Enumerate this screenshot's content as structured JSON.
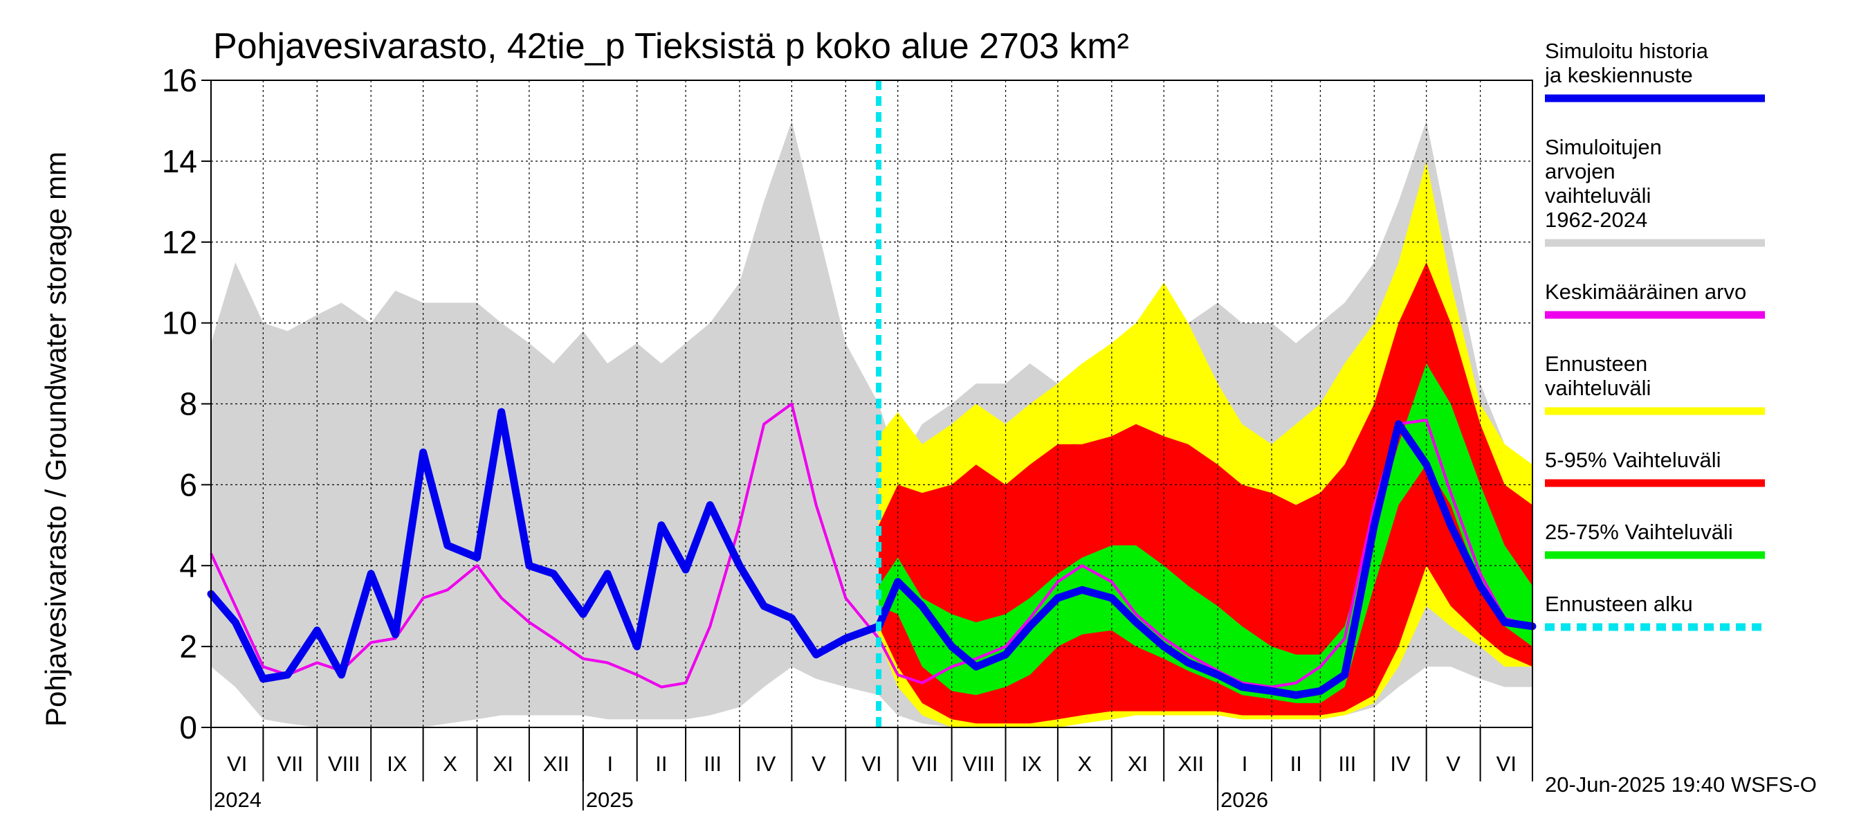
{
  "chart_data": {
    "type": "area",
    "title": "Pohjavesivarasto, 42tie_p Tieksistä p koko alue 2703 km²",
    "ylabel": "Pohjavesivarasto / Groundwater storage   mm",
    "ylim": [
      0,
      16
    ],
    "yticks": [
      0,
      2,
      4,
      6,
      8,
      10,
      12,
      14,
      16
    ],
    "grid": true,
    "legend_position": "right",
    "footer": "20-Jun-2025 19:40 WSFS-O",
    "x_range": [
      "2024-06-01",
      "2026-07-01"
    ],
    "forecast_start": "2025-06-20",
    "months": [
      {
        "label": "VI",
        "start": "2024-06-01"
      },
      {
        "label": "VII",
        "start": "2024-07-01"
      },
      {
        "label": "VIII",
        "start": "2024-08-01"
      },
      {
        "label": "IX",
        "start": "2024-09-01"
      },
      {
        "label": "X",
        "start": "2024-10-01"
      },
      {
        "label": "XI",
        "start": "2024-11-01"
      },
      {
        "label": "XII",
        "start": "2024-12-01"
      },
      {
        "label": "I",
        "start": "2025-01-01"
      },
      {
        "label": "II",
        "start": "2025-02-01"
      },
      {
        "label": "III",
        "start": "2025-03-01"
      },
      {
        "label": "IV",
        "start": "2025-04-01"
      },
      {
        "label": "V",
        "start": "2025-05-01"
      },
      {
        "label": "VI",
        "start": "2025-06-01"
      },
      {
        "label": "VII",
        "start": "2025-07-01"
      },
      {
        "label": "VIII",
        "start": "2025-08-01"
      },
      {
        "label": "IX",
        "start": "2025-09-01"
      },
      {
        "label": "X",
        "start": "2025-10-01"
      },
      {
        "label": "XI",
        "start": "2025-11-01"
      },
      {
        "label": "XII",
        "start": "2025-12-01"
      },
      {
        "label": "I",
        "start": "2026-01-01"
      },
      {
        "label": "II",
        "start": "2026-02-01"
      },
      {
        "label": "III",
        "start": "2026-03-01"
      },
      {
        "label": "IV",
        "start": "2026-04-01"
      },
      {
        "label": "V",
        "start": "2026-05-01"
      },
      {
        "label": "VI",
        "start": "2026-06-01"
      }
    ],
    "years": [
      {
        "label": "2024",
        "at": "2024-06-01"
      },
      {
        "label": "2025",
        "at": "2025-01-01"
      },
      {
        "label": "2026",
        "at": "2026-01-01"
      }
    ],
    "legend": [
      {
        "key": "history",
        "label": "Simuloitu historia ja keskiennuste",
        "color": "#0000ee",
        "style": "solid"
      },
      {
        "key": "range",
        "label": "Simuloitujen arvojen vaihteluväli 1962-2024",
        "color": "#d3d3d3",
        "style": "solid"
      },
      {
        "key": "mean",
        "label": "Keskimääräinen arvo",
        "color": "#ee00ee",
        "style": "solid"
      },
      {
        "key": "ens",
        "label": "Ennusteen vaihteluväli",
        "color": "#ffff00",
        "style": "solid"
      },
      {
        "key": "p5_95",
        "label": "5-95% Vaihteluväli",
        "color": "#ff0000",
        "style": "solid"
      },
      {
        "key": "p25_75",
        "label": "25-75% Vaihteluväli",
        "color": "#00ee00",
        "style": "solid"
      },
      {
        "key": "start",
        "label": "Ennusteen alku",
        "color": "#00e5ee",
        "style": "dashed"
      }
    ],
    "x": [
      "2024-06-01",
      "2024-06-15",
      "2024-07-01",
      "2024-07-15",
      "2024-08-01",
      "2024-08-15",
      "2024-09-01",
      "2024-09-15",
      "2024-10-01",
      "2024-10-15",
      "2024-11-01",
      "2024-11-15",
      "2024-12-01",
      "2024-12-15",
      "2025-01-01",
      "2025-01-15",
      "2025-02-01",
      "2025-02-15",
      "2025-03-01",
      "2025-03-15",
      "2025-04-01",
      "2025-04-15",
      "2025-05-01",
      "2025-05-15",
      "2025-06-01",
      "2025-06-20",
      "2025-07-01",
      "2025-07-15",
      "2025-08-01",
      "2025-08-15",
      "2025-09-01",
      "2025-09-15",
      "2025-10-01",
      "2025-10-15",
      "2025-11-01",
      "2025-11-15",
      "2025-12-01",
      "2025-12-15",
      "2026-01-01",
      "2026-01-15",
      "2026-02-01",
      "2026-02-15",
      "2026-03-01",
      "2026-03-15",
      "2026-04-01",
      "2026-04-15",
      "2026-05-01",
      "2026-05-15",
      "2026-06-01",
      "2026-06-15",
      "2026-07-01"
    ],
    "series": [
      {
        "key": "range_max",
        "values": [
          9.5,
          11.5,
          10.0,
          9.8,
          10.2,
          10.5,
          10.0,
          10.8,
          10.5,
          10.5,
          10.5,
          10.0,
          9.5,
          9.0,
          9.8,
          9.0,
          9.5,
          9.0,
          9.5,
          10.0,
          11.0,
          13.0,
          15.0,
          12.5,
          9.5,
          8.0,
          6.5,
          7.5,
          8.0,
          8.5,
          8.5,
          9.0,
          8.5,
          9.0,
          9.0,
          9.5,
          10.0,
          10.0,
          10.5,
          10.0,
          10.0,
          9.5,
          10.0,
          10.5,
          11.5,
          13.0,
          15.0,
          12.0,
          8.5,
          7.0,
          6.5
        ]
      },
      {
        "key": "range_min",
        "values": [
          1.5,
          1.0,
          0.2,
          0.1,
          0.0,
          0.0,
          0.0,
          0.0,
          0.0,
          0.1,
          0.2,
          0.3,
          0.3,
          0.3,
          0.3,
          0.2,
          0.2,
          0.2,
          0.2,
          0.3,
          0.5,
          1.0,
          1.5,
          1.2,
          1.0,
          0.8,
          0.3,
          0.1,
          0.0,
          0.0,
          0.0,
          0.0,
          0.0,
          0.1,
          0.2,
          0.3,
          0.3,
          0.3,
          0.3,
          0.2,
          0.2,
          0.2,
          0.2,
          0.3,
          0.5,
          1.0,
          1.5,
          1.5,
          1.2,
          1.0,
          1.0
        ]
      },
      {
        "key": "ens_max",
        "values": [
          null,
          null,
          null,
          null,
          null,
          null,
          null,
          null,
          null,
          null,
          null,
          null,
          null,
          null,
          null,
          null,
          null,
          null,
          null,
          null,
          null,
          null,
          null,
          null,
          null,
          7.2,
          7.8,
          7.0,
          7.5,
          8.0,
          7.5,
          8.0,
          8.5,
          9.0,
          9.5,
          10.0,
          11.0,
          10.0,
          8.5,
          7.5,
          7.0,
          7.5,
          8.0,
          9.0,
          10.0,
          11.5,
          14.0,
          11.0,
          8.0,
          7.0,
          6.5
        ]
      },
      {
        "key": "ens_min",
        "values": [
          null,
          null,
          null,
          null,
          null,
          null,
          null,
          null,
          null,
          null,
          null,
          null,
          null,
          null,
          null,
          null,
          null,
          null,
          null,
          null,
          null,
          null,
          null,
          null,
          null,
          2.2,
          1.0,
          0.3,
          0.0,
          0.0,
          0.0,
          0.0,
          0.0,
          0.1,
          0.2,
          0.3,
          0.3,
          0.3,
          0.3,
          0.2,
          0.2,
          0.2,
          0.2,
          0.3,
          0.6,
          1.5,
          3.0,
          2.5,
          2.0,
          1.5,
          1.5
        ]
      },
      {
        "key": "p95",
        "values": [
          null,
          null,
          null,
          null,
          null,
          null,
          null,
          null,
          null,
          null,
          null,
          null,
          null,
          null,
          null,
          null,
          null,
          null,
          null,
          null,
          null,
          null,
          null,
          null,
          null,
          5.0,
          6.0,
          5.8,
          6.0,
          6.5,
          6.0,
          6.5,
          7.0,
          7.0,
          7.2,
          7.5,
          7.2,
          7.0,
          6.5,
          6.0,
          5.8,
          5.5,
          5.8,
          6.5,
          8.0,
          10.0,
          11.5,
          10.0,
          7.5,
          6.0,
          5.5
        ]
      },
      {
        "key": "p5",
        "values": [
          null,
          null,
          null,
          null,
          null,
          null,
          null,
          null,
          null,
          null,
          null,
          null,
          null,
          null,
          null,
          null,
          null,
          null,
          null,
          null,
          null,
          null,
          null,
          null,
          null,
          2.5,
          1.5,
          0.6,
          0.2,
          0.1,
          0.1,
          0.1,
          0.2,
          0.3,
          0.4,
          0.4,
          0.4,
          0.4,
          0.4,
          0.3,
          0.3,
          0.3,
          0.3,
          0.4,
          0.8,
          2.0,
          4.0,
          3.0,
          2.3,
          1.8,
          1.5
        ]
      },
      {
        "key": "p75",
        "values": [
          null,
          null,
          null,
          null,
          null,
          null,
          null,
          null,
          null,
          null,
          null,
          null,
          null,
          null,
          null,
          null,
          null,
          null,
          null,
          null,
          null,
          null,
          null,
          null,
          null,
          3.5,
          4.2,
          3.2,
          2.8,
          2.6,
          2.8,
          3.2,
          3.8,
          4.2,
          4.5,
          4.5,
          4.0,
          3.5,
          3.0,
          2.5,
          2.0,
          1.8,
          1.8,
          2.5,
          5.0,
          7.0,
          9.0,
          8.0,
          6.0,
          4.5,
          3.5
        ]
      },
      {
        "key": "p25",
        "values": [
          null,
          null,
          null,
          null,
          null,
          null,
          null,
          null,
          null,
          null,
          null,
          null,
          null,
          null,
          null,
          null,
          null,
          null,
          null,
          null,
          null,
          null,
          null,
          null,
          null,
          3.0,
          2.8,
          1.5,
          0.9,
          0.8,
          1.0,
          1.3,
          2.0,
          2.3,
          2.4,
          2.0,
          1.7,
          1.4,
          1.1,
          0.8,
          0.7,
          0.6,
          0.6,
          1.0,
          3.5,
          5.5,
          6.5,
          5.5,
          3.5,
          2.5,
          2.0
        ]
      },
      {
        "key": "history",
        "values": [
          3.3,
          2.6,
          1.2,
          1.3,
          2.4,
          1.3,
          3.8,
          2.3,
          6.8,
          4.5,
          4.2,
          7.8,
          4.0,
          3.8,
          2.8,
          3.8,
          2.0,
          5.0,
          3.9,
          5.5,
          4.0,
          3.0,
          2.7,
          1.8,
          2.2,
          2.5,
          3.6,
          3.0,
          2.0,
          1.5,
          1.8,
          2.5,
          3.2,
          3.4,
          3.2,
          2.6,
          2.0,
          1.6,
          1.3,
          1.0,
          0.9,
          0.8,
          0.9,
          1.3,
          5.0,
          7.5,
          6.5,
          5.0,
          3.5,
          2.6,
          2.5
        ]
      },
      {
        "key": "mean",
        "values": [
          4.3,
          3.0,
          1.5,
          1.3,
          1.6,
          1.4,
          2.1,
          2.2,
          3.2,
          3.4,
          4.0,
          3.2,
          2.6,
          2.2,
          1.7,
          1.6,
          1.3,
          1.0,
          1.1,
          2.5,
          5.0,
          7.5,
          8.0,
          5.5,
          3.2,
          2.2,
          1.3,
          1.1,
          1.5,
          1.7,
          2.0,
          2.7,
          3.6,
          4.0,
          3.6,
          2.8,
          2.2,
          1.8,
          1.4,
          1.1,
          1.0,
          1.1,
          1.5,
          2.2,
          5.5,
          7.5,
          7.6,
          5.8,
          3.8,
          2.7,
          2.5
        ]
      }
    ]
  }
}
